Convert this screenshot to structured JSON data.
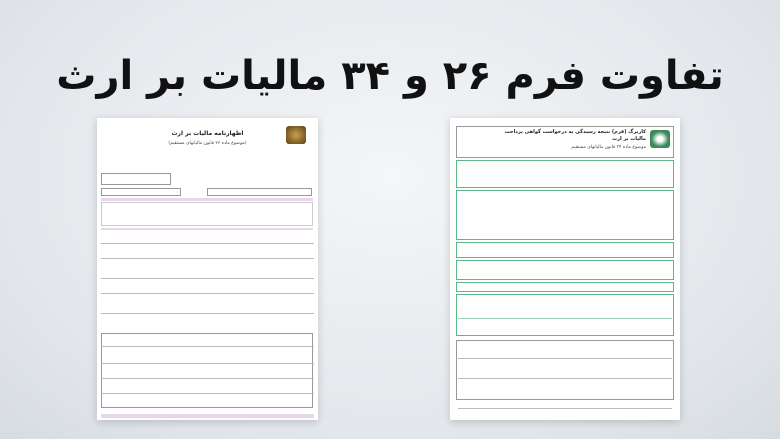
{
  "title": "تفاوت فرم ۲۶ و ۳۴ مالیات بر ارث",
  "left_form": {
    "heading": "اظهارنامه مالیات بر ارث",
    "subheading": "(موضوع ماده ۲۶ قانون مالیاتهای مستقیم)",
    "logo_icon": "tax-organization-logo"
  },
  "right_form": {
    "heading": "کاربرگ (فرم) نتیجه رسیدگی به درخواست گواهی پرداخت مالیات بر ارث",
    "subheading": "موضوع ماده ۳۴ قانون مالیاتهای مستقیم",
    "accent_color": "#5cb88a",
    "logo_icon": "tax-organization-logo"
  }
}
